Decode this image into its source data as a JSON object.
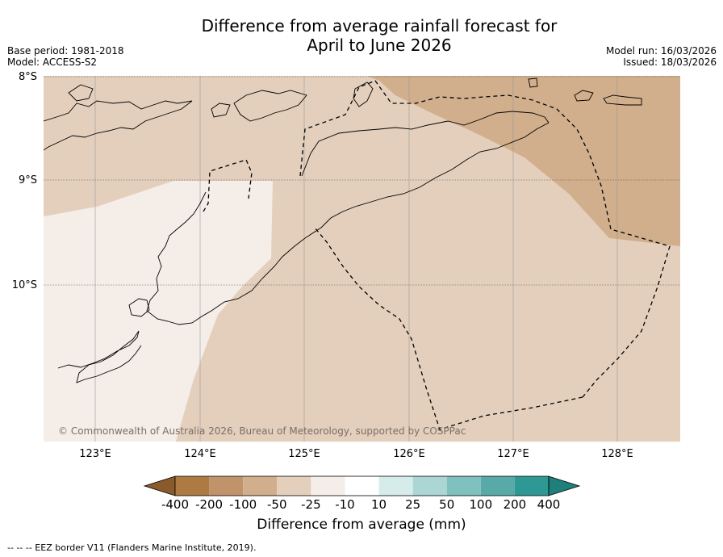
{
  "title": {
    "line1": "Difference from average rainfall forecast for",
    "line2": "April to June 2026"
  },
  "meta": {
    "base_period": "Base period: 1981-2018",
    "model": "Model: ACCESS-S2",
    "model_run": "Model run: 16/03/2026",
    "issued": "Issued: 18/03/2026"
  },
  "axes": {
    "lat_labels": [
      "8°S",
      "9°S",
      "10°S"
    ],
    "lon_labels": [
      "123°E",
      "124°E",
      "125°E",
      "126°E",
      "127°E",
      "128°E"
    ]
  },
  "copyright": "© Commonwealth of Australia 2026, Bureau of Meteorology, supported by COSPPac",
  "colorbar": {
    "title": "Difference from average (mm)",
    "tick_labels": [
      "-400",
      "-200",
      "-100",
      "-50",
      "-25",
      "-10",
      "10",
      "25",
      "50",
      "100",
      "200",
      "400"
    ],
    "colors": [
      "#ae7a44",
      "#c0936a",
      "#d1ae8c",
      "#e3cfbc",
      "#f5ede7",
      "#ffffff",
      "#d6ecea",
      "#acd6d4",
      "#7fc1be",
      "#57aaa8",
      "#2e9894"
    ],
    "extend_low_color": "#8b5a2b",
    "extend_high_color": "#1f7f7a"
  },
  "palette": {
    "light_brown": "#e3cfbc",
    "very_light": "#f5ede7",
    "mid_brown": "#d1ae8c"
  },
  "footer": "--  --  -- EEZ border V11 (Flanders Marine Institute, 2019)."
}
